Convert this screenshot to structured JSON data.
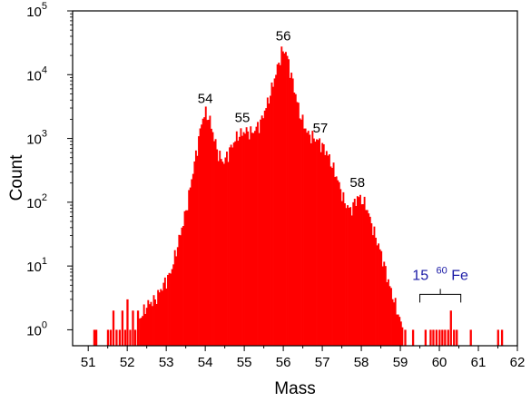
{
  "chart_data": {
    "type": "bar",
    "title": "",
    "xlabel": "Mass",
    "ylabel": "Count",
    "xlim": [
      50.6,
      62
    ],
    "ylim_log10": [
      -0.25,
      5
    ],
    "y_scale": "log",
    "bar_color": "#ff0000",
    "xticks": [
      51,
      52,
      53,
      54,
      55,
      56,
      57,
      58,
      59,
      60,
      61,
      62
    ],
    "yticks": [
      {
        "base": "10",
        "exp": "0",
        "value": 1
      },
      {
        "base": "10",
        "exp": "1",
        "value": 10
      },
      {
        "base": "10",
        "exp": "2",
        "value": 100
      },
      {
        "base": "10",
        "exp": "3",
        "value": 1000
      },
      {
        "base": "10",
        "exp": "4",
        "value": 10000
      },
      {
        "base": "10",
        "exp": "5",
        "value": 100000
      }
    ],
    "peak_labels": [
      {
        "text": "54",
        "x": 54.0,
        "y": 2600
      },
      {
        "text": "55",
        "x": 54.95,
        "y": 1300
      },
      {
        "text": "56",
        "x": 56.0,
        "y": 25000
      },
      {
        "text": "57",
        "x": 56.95,
        "y": 900
      },
      {
        "text": "58",
        "x": 57.9,
        "y": 125
      }
    ],
    "annotation": {
      "count": "15",
      "isotope_mass": "60",
      "element": "Fe",
      "color": "#1a1aa6",
      "bracket_range": [
        59.5,
        60.55
      ]
    },
    "bin_width": 0.036,
    "profile": [
      [
        52.3,
        1.5
      ],
      [
        52.5,
        2.5
      ],
      [
        52.7,
        3
      ],
      [
        52.9,
        5
      ],
      [
        53.1,
        8
      ],
      [
        53.3,
        25
      ],
      [
        53.5,
        80
      ],
      [
        53.7,
        400
      ],
      [
        53.9,
        2000
      ],
      [
        54.0,
        2600
      ],
      [
        54.1,
        1900
      ],
      [
        54.3,
        600
      ],
      [
        54.45,
        420
      ],
      [
        54.6,
        650
      ],
      [
        54.8,
        1100
      ],
      [
        55.0,
        1300
      ],
      [
        55.2,
        1250
      ],
      [
        55.4,
        1800
      ],
      [
        55.6,
        4000
      ],
      [
        55.8,
        11000
      ],
      [
        55.95,
        24000
      ],
      [
        56.05,
        23000
      ],
      [
        56.2,
        9000
      ],
      [
        56.4,
        2500
      ],
      [
        56.6,
        1200
      ],
      [
        56.9,
        900
      ],
      [
        57.1,
        600
      ],
      [
        57.35,
        250
      ],
      [
        57.55,
        100
      ],
      [
        57.7,
        75
      ],
      [
        57.9,
        125
      ],
      [
        58.1,
        90
      ],
      [
        58.3,
        35
      ],
      [
        58.5,
        15
      ],
      [
        58.7,
        5
      ],
      [
        58.9,
        2
      ],
      [
        59.05,
        1
      ]
    ],
    "noise_bars": [
      [
        51.13,
        1
      ],
      [
        51.18,
        1
      ],
      [
        51.48,
        1
      ],
      [
        51.55,
        1
      ],
      [
        51.62,
        2
      ],
      [
        51.7,
        1
      ],
      [
        51.78,
        1
      ],
      [
        51.85,
        2
      ],
      [
        51.92,
        1
      ],
      [
        51.98,
        3
      ],
      [
        52.05,
        1
      ],
      [
        52.12,
        2
      ],
      [
        52.18,
        1
      ],
      [
        52.25,
        2
      ],
      [
        52.32,
        1
      ],
      [
        59.1,
        1
      ],
      [
        59.3,
        1
      ],
      [
        59.62,
        1
      ],
      [
        59.75,
        1
      ],
      [
        59.82,
        1
      ],
      [
        59.9,
        1
      ],
      [
        59.98,
        1
      ],
      [
        60.05,
        1
      ],
      [
        60.12,
        1
      ],
      [
        60.2,
        1
      ],
      [
        60.27,
        2
      ],
      [
        60.35,
        1
      ],
      [
        60.42,
        1
      ],
      [
        60.78,
        1
      ],
      [
        61.48,
        1
      ],
      [
        61.58,
        1
      ]
    ]
  }
}
